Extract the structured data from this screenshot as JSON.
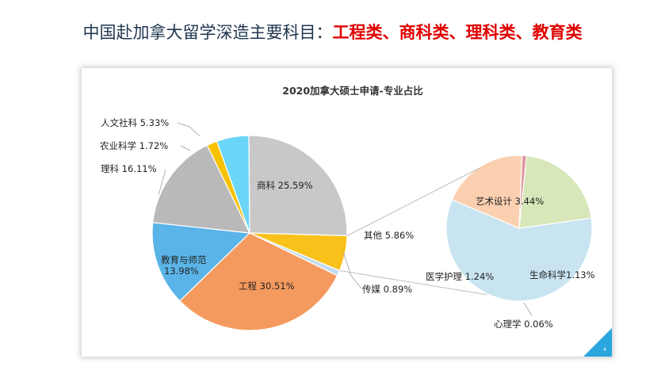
{
  "slide": {
    "title_prefix": "中国赴加拿大留学深造主要科目：",
    "title_highlight": "工程类、商科类、理科类、教育类",
    "page_number": "4"
  },
  "chart_data": {
    "type": "pie",
    "title": "2020加拿大硕士申请-专业占比",
    "slices": [
      {
        "name": "商科",
        "value": 25.59,
        "color": "#c8c8c8",
        "label": "商科 25.59%"
      },
      {
        "name": "其他",
        "value": 5.86,
        "color": "#f9c21a",
        "label": "其他 5.86%"
      },
      {
        "name": "传媒",
        "value": 0.89,
        "color": "#c2dcec",
        "label": "传媒 0.89%"
      },
      {
        "name": "工程",
        "value": 30.51,
        "color": "#f59a5e",
        "label": "工程 30.51%"
      },
      {
        "name": "教育与师范",
        "value": 13.98,
        "color": "#5bb4e8",
        "label_line1": "教育与师范",
        "label_line2": "13.98%"
      },
      {
        "name": "理科",
        "value": 16.11,
        "color": "#b9b9b9",
        "label": "理科 16.11%"
      },
      {
        "name": "农业科学",
        "value": 1.72,
        "color": "#f6c200",
        "label": "农业科学 1.72%"
      },
      {
        "name": "人文社科",
        "value": 5.33,
        "color": "#6cd6f8",
        "label": "人文社科 5.33%"
      }
    ],
    "breakout": {
      "parent": "其他",
      "slices": [
        {
          "name": "艺术设计",
          "value": 3.44,
          "color": "#c9e4f1",
          "label": "艺术设计 3.44%"
        },
        {
          "name": "生命科学",
          "value": 1.13,
          "color": "#fbd0b0",
          "label": "生命科学1.13%"
        },
        {
          "name": "心理学",
          "value": 0.06,
          "color": "#e098a0",
          "label": "心理学 0.06%"
        },
        {
          "name": "医学护理",
          "value": 1.24,
          "color": "#d7e7b9",
          "label": "医学护理 1.24%"
        }
      ]
    }
  }
}
